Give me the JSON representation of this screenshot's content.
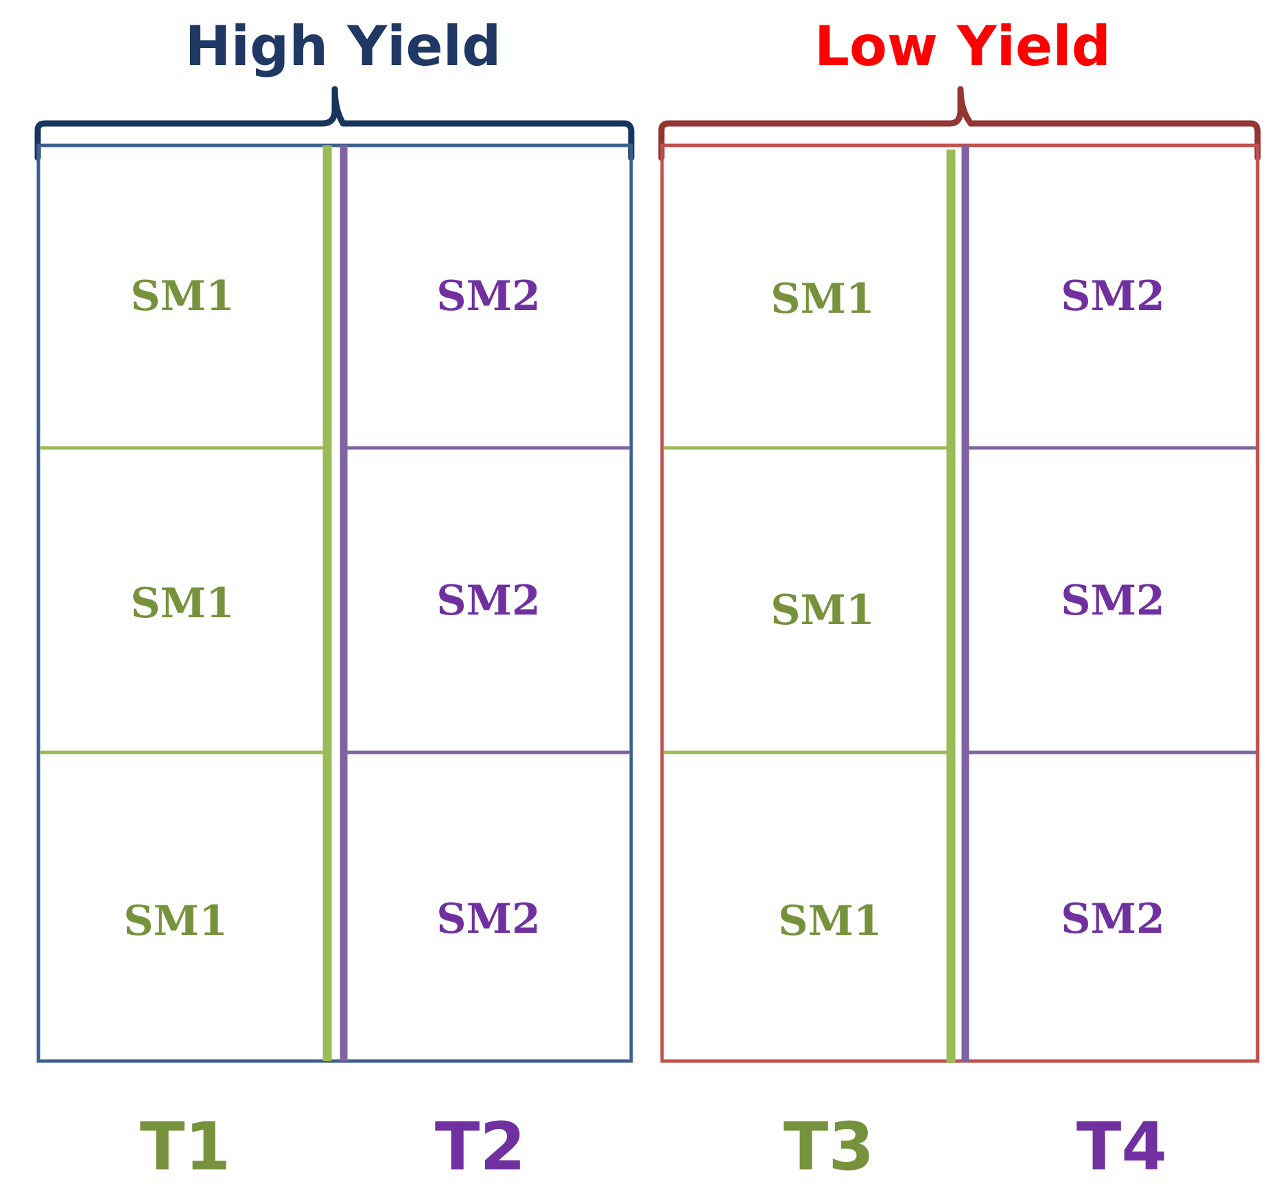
{
  "colors": {
    "high_title": "#1f3864",
    "high_brace": "#17365d",
    "high_border": "#3c5f8f",
    "low_title": "#ff0000",
    "low_brace": "#943634",
    "low_border": "#c0504d",
    "sm1": "#76923c",
    "sm1_line": "#9bbb59",
    "sm2": "#7030a0",
    "sm2_line": "#8064a2"
  },
  "groups": [
    {
      "title": "High Yield",
      "treatments": [
        {
          "label": "T1",
          "cells": [
            "SM1",
            "SM1",
            "SM1"
          ]
        },
        {
          "label": "T2",
          "cells": [
            "SM2",
            "SM2",
            "SM2"
          ]
        }
      ]
    },
    {
      "title": "Low Yield",
      "treatments": [
        {
          "label": "T3",
          "cells": [
            "SM1",
            "SM1",
            "SM1"
          ]
        },
        {
          "label": "T4",
          "cells": [
            "SM2",
            "SM2",
            "SM2"
          ]
        }
      ]
    }
  ]
}
